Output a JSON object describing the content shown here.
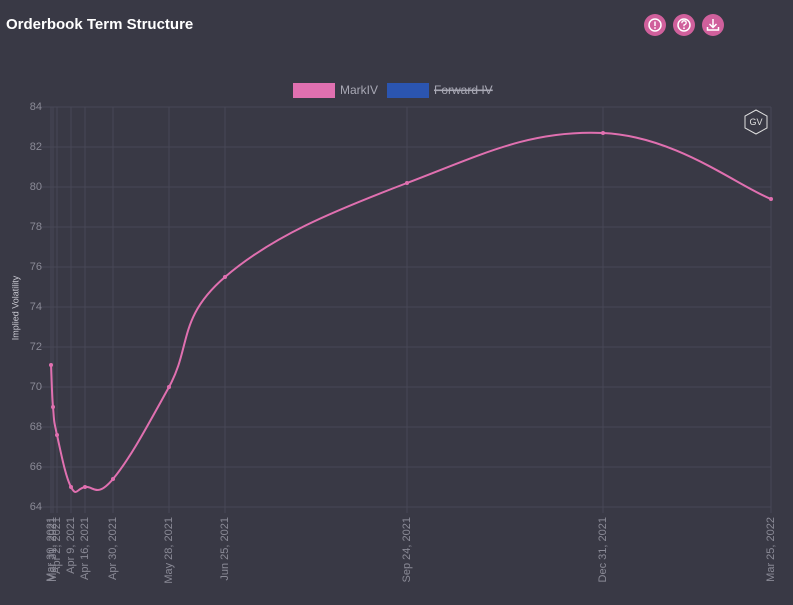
{
  "chart_data": {
    "type": "line",
    "title": "Orderbook Term Structure",
    "y_label": "Implied Volatility",
    "logo": "GV",
    "x": [
      "Mar 30, 2021",
      "Mar 31, 2021",
      "Apr 2, 2021",
      "Apr 9, 2021",
      "Apr 16, 2021",
      "Apr 30, 2021",
      "May 28, 2021",
      "Jun 25, 2021",
      "Sep 24, 2021",
      "Dec 31, 2021",
      "Mar 25, 2022"
    ],
    "series": [
      {
        "name": "MarkIV",
        "color": "#e070b0",
        "values": [
          71.1,
          69.0,
          67.6,
          65.0,
          65.0,
          65.4,
          70.0,
          75.5,
          80.2,
          82.7,
          79.4
        ]
      },
      {
        "name": "Forward IV",
        "color": "#2b55b0",
        "hidden": true
      }
    ],
    "xlim": [
      "Mar 30, 2021",
      "Mar 25, 2022"
    ],
    "xticks": [
      "Mar 30, 2021",
      "Mar 31, 2021",
      "Apr 2, 2021",
      "Apr 9, 2021",
      "Apr 16, 2021",
      "Apr 30, 2021",
      "May 28, 2021",
      "Jun 25, 2021",
      "Sep 24, 2021",
      "Dec 31, 2021",
      "Mar 25, 2022"
    ],
    "ylim": [
      64,
      84
    ],
    "yticks": [
      64,
      66,
      68,
      70,
      72,
      74,
      76,
      78,
      80,
      82,
      84
    ],
    "grid": true
  }
}
